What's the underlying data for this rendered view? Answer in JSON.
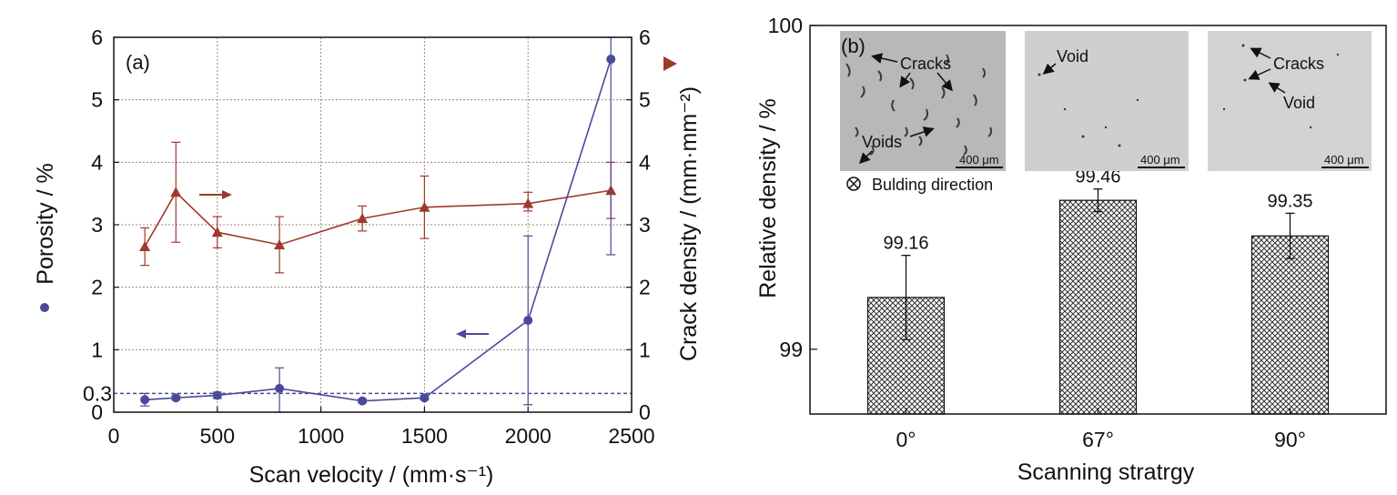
{
  "chart_data": [
    {
      "type": "line",
      "panel_label": "(a)",
      "xlabel": "Scan velocity / (mm·s⁻¹)",
      "ylabel_left": "Porosity / %",
      "ylabel_right": "Crack density / (mm·mm⁻²)",
      "xlim": [
        0,
        2500
      ],
      "ylim": [
        0,
        6
      ],
      "ylim_right": [
        0,
        6
      ],
      "x_ticks": [
        "0",
        "500",
        "1000",
        "1500",
        "2000",
        "2500"
      ],
      "y_ticks": [
        "0",
        "1",
        "2",
        "3",
        "4",
        "5",
        "6"
      ],
      "y_ticks_right": [
        "0",
        "1",
        "2",
        "3",
        "4",
        "5",
        "6"
      ],
      "grid": true,
      "reference_line": {
        "y": 0.3,
        "label": "0.3",
        "style": "dashed"
      },
      "series": [
        {
          "axis": "left",
          "marker": "circle",
          "x": [
            150,
            300,
            500,
            800,
            1200,
            1500,
            2000,
            2400
          ],
          "y": [
            0.2,
            0.23,
            0.27,
            0.38,
            0.18,
            0.23,
            1.47,
            5.65
          ],
          "err_low": [
            0.1,
            0.03,
            0.05,
            0.38,
            0.03,
            0.03,
            1.35,
            3.13
          ],
          "err_high": [
            0.1,
            0.03,
            0.05,
            0.33,
            0.03,
            0.03,
            1.35,
            0.35
          ]
        },
        {
          "axis": "right",
          "marker": "triangle",
          "x": [
            150,
            300,
            500,
            800,
            1200,
            1500,
            2000,
            2400
          ],
          "y": [
            2.65,
            3.52,
            2.88,
            2.68,
            3.1,
            3.28,
            3.34,
            3.55
          ],
          "err_low": [
            0.3,
            0.8,
            0.25,
            0.45,
            0.2,
            0.5,
            0.12,
            0.45
          ],
          "err_high": [
            0.3,
            0.8,
            0.25,
            0.45,
            0.2,
            0.5,
            0.18,
            0.45
          ]
        }
      ],
      "colors": {
        "porosity": "#4b4a9a",
        "crack": "#9e3a2c",
        "grid": "#9a8a7a"
      }
    },
    {
      "type": "bar",
      "panel_label": "(b)",
      "xlabel": "Scanning stratrgy",
      "ylabel": "Relative density / %",
      "ylim": [
        98.8,
        100
      ],
      "y_ticks": [
        "99",
        "100"
      ],
      "categories": [
        "0°",
        "67°",
        "90°"
      ],
      "values": [
        99.16,
        99.46,
        99.35
      ],
      "value_labels": [
        "99.16",
        "99.46",
        "99.35"
      ],
      "errors": [
        0.13,
        0.035,
        0.07
      ],
      "bar_fill": "crosshatch",
      "insets": [
        {
          "annotations": [
            "Cracks",
            "Voids"
          ],
          "scale_bar": "400 μm"
        },
        {
          "annotations": [
            "Void"
          ],
          "scale_bar": "400 μm"
        },
        {
          "annotations": [
            "Cracks",
            "Void"
          ],
          "scale_bar": "400 μm"
        }
      ],
      "inset_note": "Bulding direction"
    }
  ]
}
